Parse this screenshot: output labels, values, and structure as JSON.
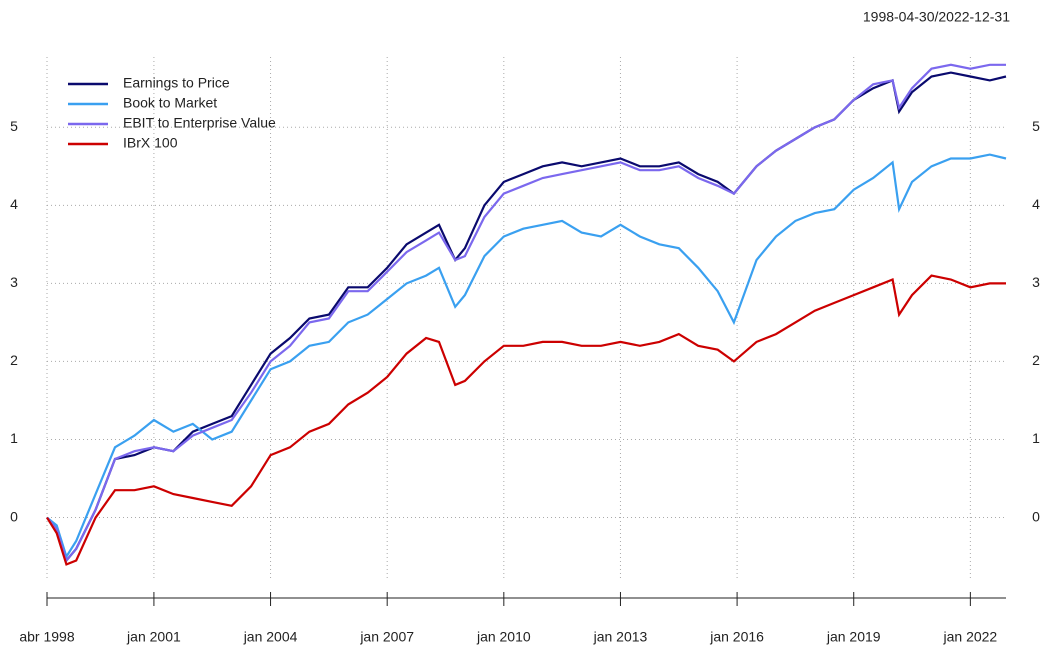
{
  "chart_data": {
    "type": "line",
    "title": "1998-04-30/2022-12-31",
    "x": [
      "1998-04",
      "1998-07",
      "1998-10",
      "1999-01",
      "1999-07",
      "2000-01",
      "2000-07",
      "2001-01",
      "2001-07",
      "2002-01",
      "2002-07",
      "2003-01",
      "2003-07",
      "2004-01",
      "2004-07",
      "2005-01",
      "2005-07",
      "2006-01",
      "2006-07",
      "2007-01",
      "2007-07",
      "2008-01",
      "2008-05",
      "2008-10",
      "2009-01",
      "2009-07",
      "2010-01",
      "2010-07",
      "2011-01",
      "2011-07",
      "2012-01",
      "2012-07",
      "2013-01",
      "2013-07",
      "2014-01",
      "2014-07",
      "2015-01",
      "2015-07",
      "2015-12",
      "2016-07",
      "2017-01",
      "2017-07",
      "2018-01",
      "2018-07",
      "2019-01",
      "2019-07",
      "2020-01",
      "2020-03",
      "2020-07",
      "2021-01",
      "2021-07",
      "2022-01",
      "2022-07",
      "2022-12"
    ],
    "series": [
      {
        "name": "Earnings to Price",
        "color": "#0a0a6e",
        "values": [
          0,
          -0.15,
          -0.55,
          -0.4,
          0.1,
          0.75,
          0.8,
          0.9,
          0.85,
          1.1,
          1.2,
          1.3,
          1.7,
          2.1,
          2.3,
          2.55,
          2.6,
          2.95,
          2.95,
          3.2,
          3.5,
          3.65,
          3.75,
          3.3,
          3.45,
          4.0,
          4.3,
          4.4,
          4.5,
          4.55,
          4.5,
          4.55,
          4.6,
          4.5,
          4.5,
          4.55,
          4.4,
          4.3,
          4.15,
          4.5,
          4.7,
          4.85,
          5.0,
          5.1,
          5.35,
          5.5,
          5.6,
          5.2,
          5.45,
          5.65,
          5.7,
          5.65,
          5.6,
          5.65
        ]
      },
      {
        "name": "Book to Market",
        "color": "#3aa0f0",
        "values": [
          0,
          -0.1,
          -0.5,
          -0.3,
          0.3,
          0.9,
          1.05,
          1.25,
          1.1,
          1.2,
          1.0,
          1.1,
          1.5,
          1.9,
          2.0,
          2.2,
          2.25,
          2.5,
          2.6,
          2.8,
          3.0,
          3.1,
          3.2,
          2.7,
          2.85,
          3.35,
          3.6,
          3.7,
          3.75,
          3.8,
          3.65,
          3.6,
          3.75,
          3.6,
          3.5,
          3.45,
          3.2,
          2.9,
          2.5,
          3.3,
          3.6,
          3.8,
          3.9,
          3.95,
          4.2,
          4.35,
          4.55,
          3.95,
          4.3,
          4.5,
          4.6,
          4.6,
          4.65,
          4.6
        ]
      },
      {
        "name": "EBIT to Enterprise Value",
        "color": "#7b68ee",
        "values": [
          0,
          -0.15,
          -0.55,
          -0.4,
          0.1,
          0.75,
          0.85,
          0.9,
          0.85,
          1.05,
          1.15,
          1.25,
          1.6,
          2.0,
          2.2,
          2.5,
          2.55,
          2.9,
          2.9,
          3.15,
          3.4,
          3.55,
          3.65,
          3.3,
          3.35,
          3.85,
          4.15,
          4.25,
          4.35,
          4.4,
          4.45,
          4.5,
          4.55,
          4.45,
          4.45,
          4.5,
          4.35,
          4.25,
          4.15,
          4.5,
          4.7,
          4.85,
          5.0,
          5.1,
          5.35,
          5.55,
          5.6,
          5.25,
          5.5,
          5.75,
          5.8,
          5.75,
          5.8,
          5.8
        ]
      },
      {
        "name": "IBrX 100",
        "color": "#cc0000",
        "values": [
          0,
          -0.2,
          -0.6,
          -0.55,
          0.0,
          0.35,
          0.35,
          0.4,
          0.3,
          0.25,
          0.2,
          0.15,
          0.4,
          0.8,
          0.9,
          1.1,
          1.2,
          1.45,
          1.6,
          1.8,
          2.1,
          2.3,
          2.25,
          1.7,
          1.75,
          2.0,
          2.2,
          2.2,
          2.25,
          2.25,
          2.2,
          2.2,
          2.25,
          2.2,
          2.25,
          2.35,
          2.2,
          2.15,
          2.0,
          2.25,
          2.35,
          2.5,
          2.65,
          2.75,
          2.85,
          2.95,
          3.05,
          2.6,
          2.85,
          3.1,
          3.05,
          2.95,
          3.0,
          3.0
        ]
      }
    ],
    "xlim": [
      "1998-04",
      "2022-12"
    ],
    "xticks": [
      {
        "value": "1998-04",
        "label": "abr 1998"
      },
      {
        "value": "2001-01",
        "label": "jan 2001"
      },
      {
        "value": "2004-01",
        "label": "jan 2004"
      },
      {
        "value": "2007-01",
        "label": "jan 2007"
      },
      {
        "value": "2010-01",
        "label": "jan 2010"
      },
      {
        "value": "2013-01",
        "label": "jan 2013"
      },
      {
        "value": "2016-01",
        "label": "jan 2016"
      },
      {
        "value": "2019-01",
        "label": "jan 2019"
      },
      {
        "value": "2022-01",
        "label": "jan 2022"
      }
    ],
    "ylim": [
      -0.8,
      5.9
    ],
    "yticks": [
      0,
      1,
      2,
      3,
      4,
      5
    ],
    "grid": true,
    "legend": "top-left"
  }
}
